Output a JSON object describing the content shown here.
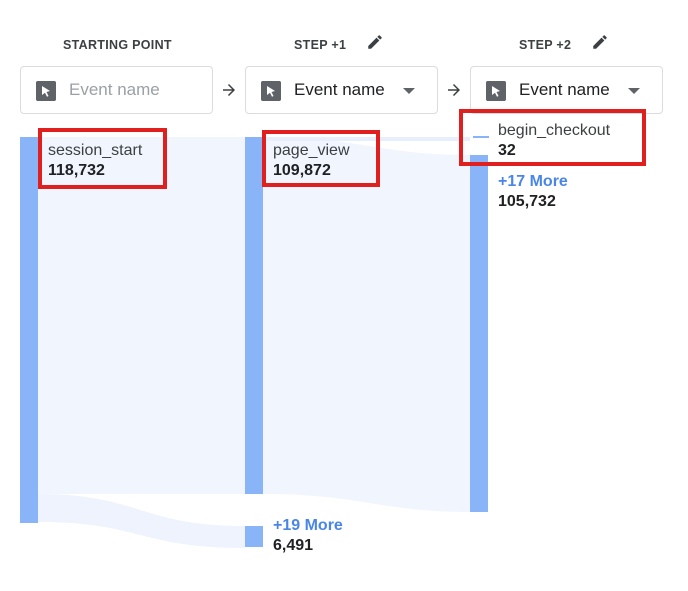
{
  "steps": [
    {
      "label": "STARTING POINT",
      "dropdown": {
        "text": "Event name",
        "is_placeholder": true
      }
    },
    {
      "label": "STEP +1",
      "dropdown": {
        "text": "Event name",
        "is_placeholder": false
      }
    },
    {
      "label": "STEP +2",
      "dropdown": {
        "text": "Event name",
        "is_placeholder": false
      }
    }
  ],
  "nodes": {
    "start": {
      "name": "session_start",
      "value": "118,732"
    },
    "step1_main": {
      "name": "page_view",
      "value": "109,872"
    },
    "step1_more": {
      "label": "+19 More",
      "value": "6,491"
    },
    "step2_checkout": {
      "name": "begin_checkout",
      "value": "32"
    },
    "step2_more": {
      "label": "+17 More",
      "value": "105,732"
    }
  },
  "colors": {
    "node_bar": "#8ab4f8",
    "flow": "#eef3fd",
    "highlight": "#e01f1f",
    "more_link": "#4a86e8"
  },
  "icons": {
    "edit": "pencil-icon",
    "event": "cursor-icon",
    "arrow": "arrow-right-icon",
    "caret": "caret-down-icon"
  }
}
